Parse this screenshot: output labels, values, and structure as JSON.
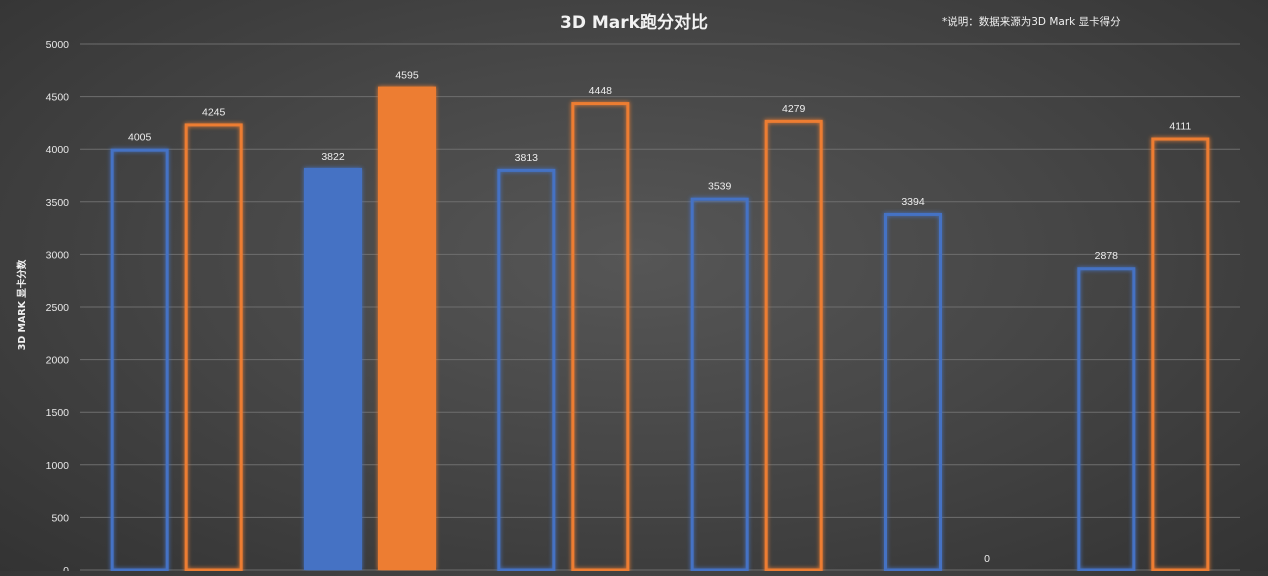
{
  "chart_data": {
    "type": "bar",
    "title": "3D Mark跑分对比",
    "note": "*说明：数据来源为3D Mark 显卡得分",
    "xlabel": "",
    "ylabel": "3D MARK 显卡分数",
    "ylim": [
      0,
      5000
    ],
    "yticks": [
      "0",
      "500",
      "1000",
      "1500",
      "2000",
      "2500",
      "3000",
      "3500",
      "4000",
      "4500",
      "5000"
    ],
    "grid": true,
    "categories": [
      "",
      "",
      "",
      "",
      "",
      ""
    ],
    "series": [
      {
        "values": [
          4005,
          3822,
          3813,
          3539,
          3394,
          2878
        ],
        "color": "#4472c4",
        "filled": [
          false,
          true,
          false,
          false,
          false,
          false
        ]
      },
      {
        "values": [
          4245,
          4595,
          4448,
          4279,
          0,
          4111
        ],
        "color": "#ed7d31",
        "filled": [
          false,
          true,
          false,
          false,
          false,
          false
        ]
      }
    ],
    "data_labels": [
      [
        "4005",
        "3822",
        "3813",
        "3539",
        "3394",
        "2878"
      ],
      [
        "4245",
        "4595",
        "4448",
        "4279",
        "0",
        "4111"
      ]
    ]
  }
}
